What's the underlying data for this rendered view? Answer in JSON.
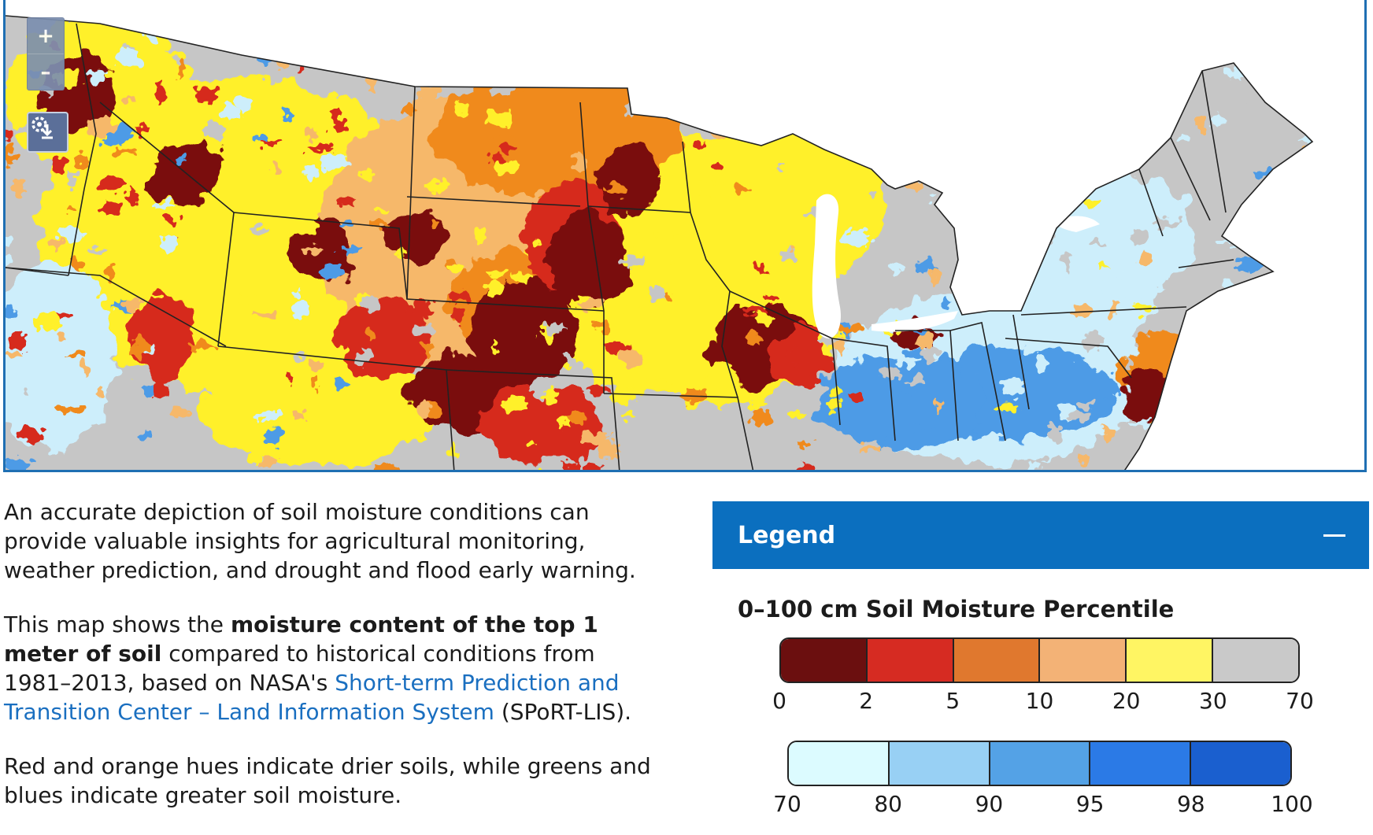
{
  "map": {
    "zoom_in_label": "+",
    "zoom_out_label": "–",
    "download_icon": "map-download-icon",
    "colors": {
      "dark_red": "#7a0d0d",
      "red": "#d62b1f",
      "orange": "#f08a1c",
      "light_orange": "#f6b86a",
      "yellow": "#fff02a",
      "gray": "#c6c6c6",
      "light_blue": "#cdeefb",
      "blue": "#4d9be6",
      "dark_blue": "#1a5fcf",
      "water": "#ffffff",
      "border": "#222222"
    }
  },
  "description": {
    "p1": "An accurate depiction of soil moisture conditions can provide valuable insights for agricultural monitoring, weather prediction, and drought and flood early warning.",
    "p2_before": "This map shows the ",
    "p2_bold1": "moisture content of the top 1 meter of soil",
    "p2_mid": " compared to historical conditions from 1981–2013, based on NASA's ",
    "p2_link": "Short-term Prediction and Transition Center – Land Information System",
    "p2_after": " (SPoRT-LIS).",
    "p3": "Red and orange hues indicate drier soils, while greens and blues indicate greater soil moisture."
  },
  "legend": {
    "title": "Legend",
    "collapse_icon": "minus-icon",
    "subtitle": "0–100 cm Soil Moisture Percentile",
    "dry_scale": {
      "colors": [
        "#6b0f0f",
        "#d62b22",
        "#e0782e",
        "#f3b276",
        "#fff563",
        "#c9c9c9"
      ],
      "ticks": [
        "0",
        "2",
        "5",
        "10",
        "20",
        "30",
        "70"
      ]
    },
    "wet_scale": {
      "colors": [
        "#dcfbff",
        "#98d0f4",
        "#54a2e6",
        "#2b7ae6",
        "#1a5fcf"
      ],
      "ticks": [
        "70",
        "80",
        "90",
        "95",
        "98",
        "100"
      ]
    }
  }
}
